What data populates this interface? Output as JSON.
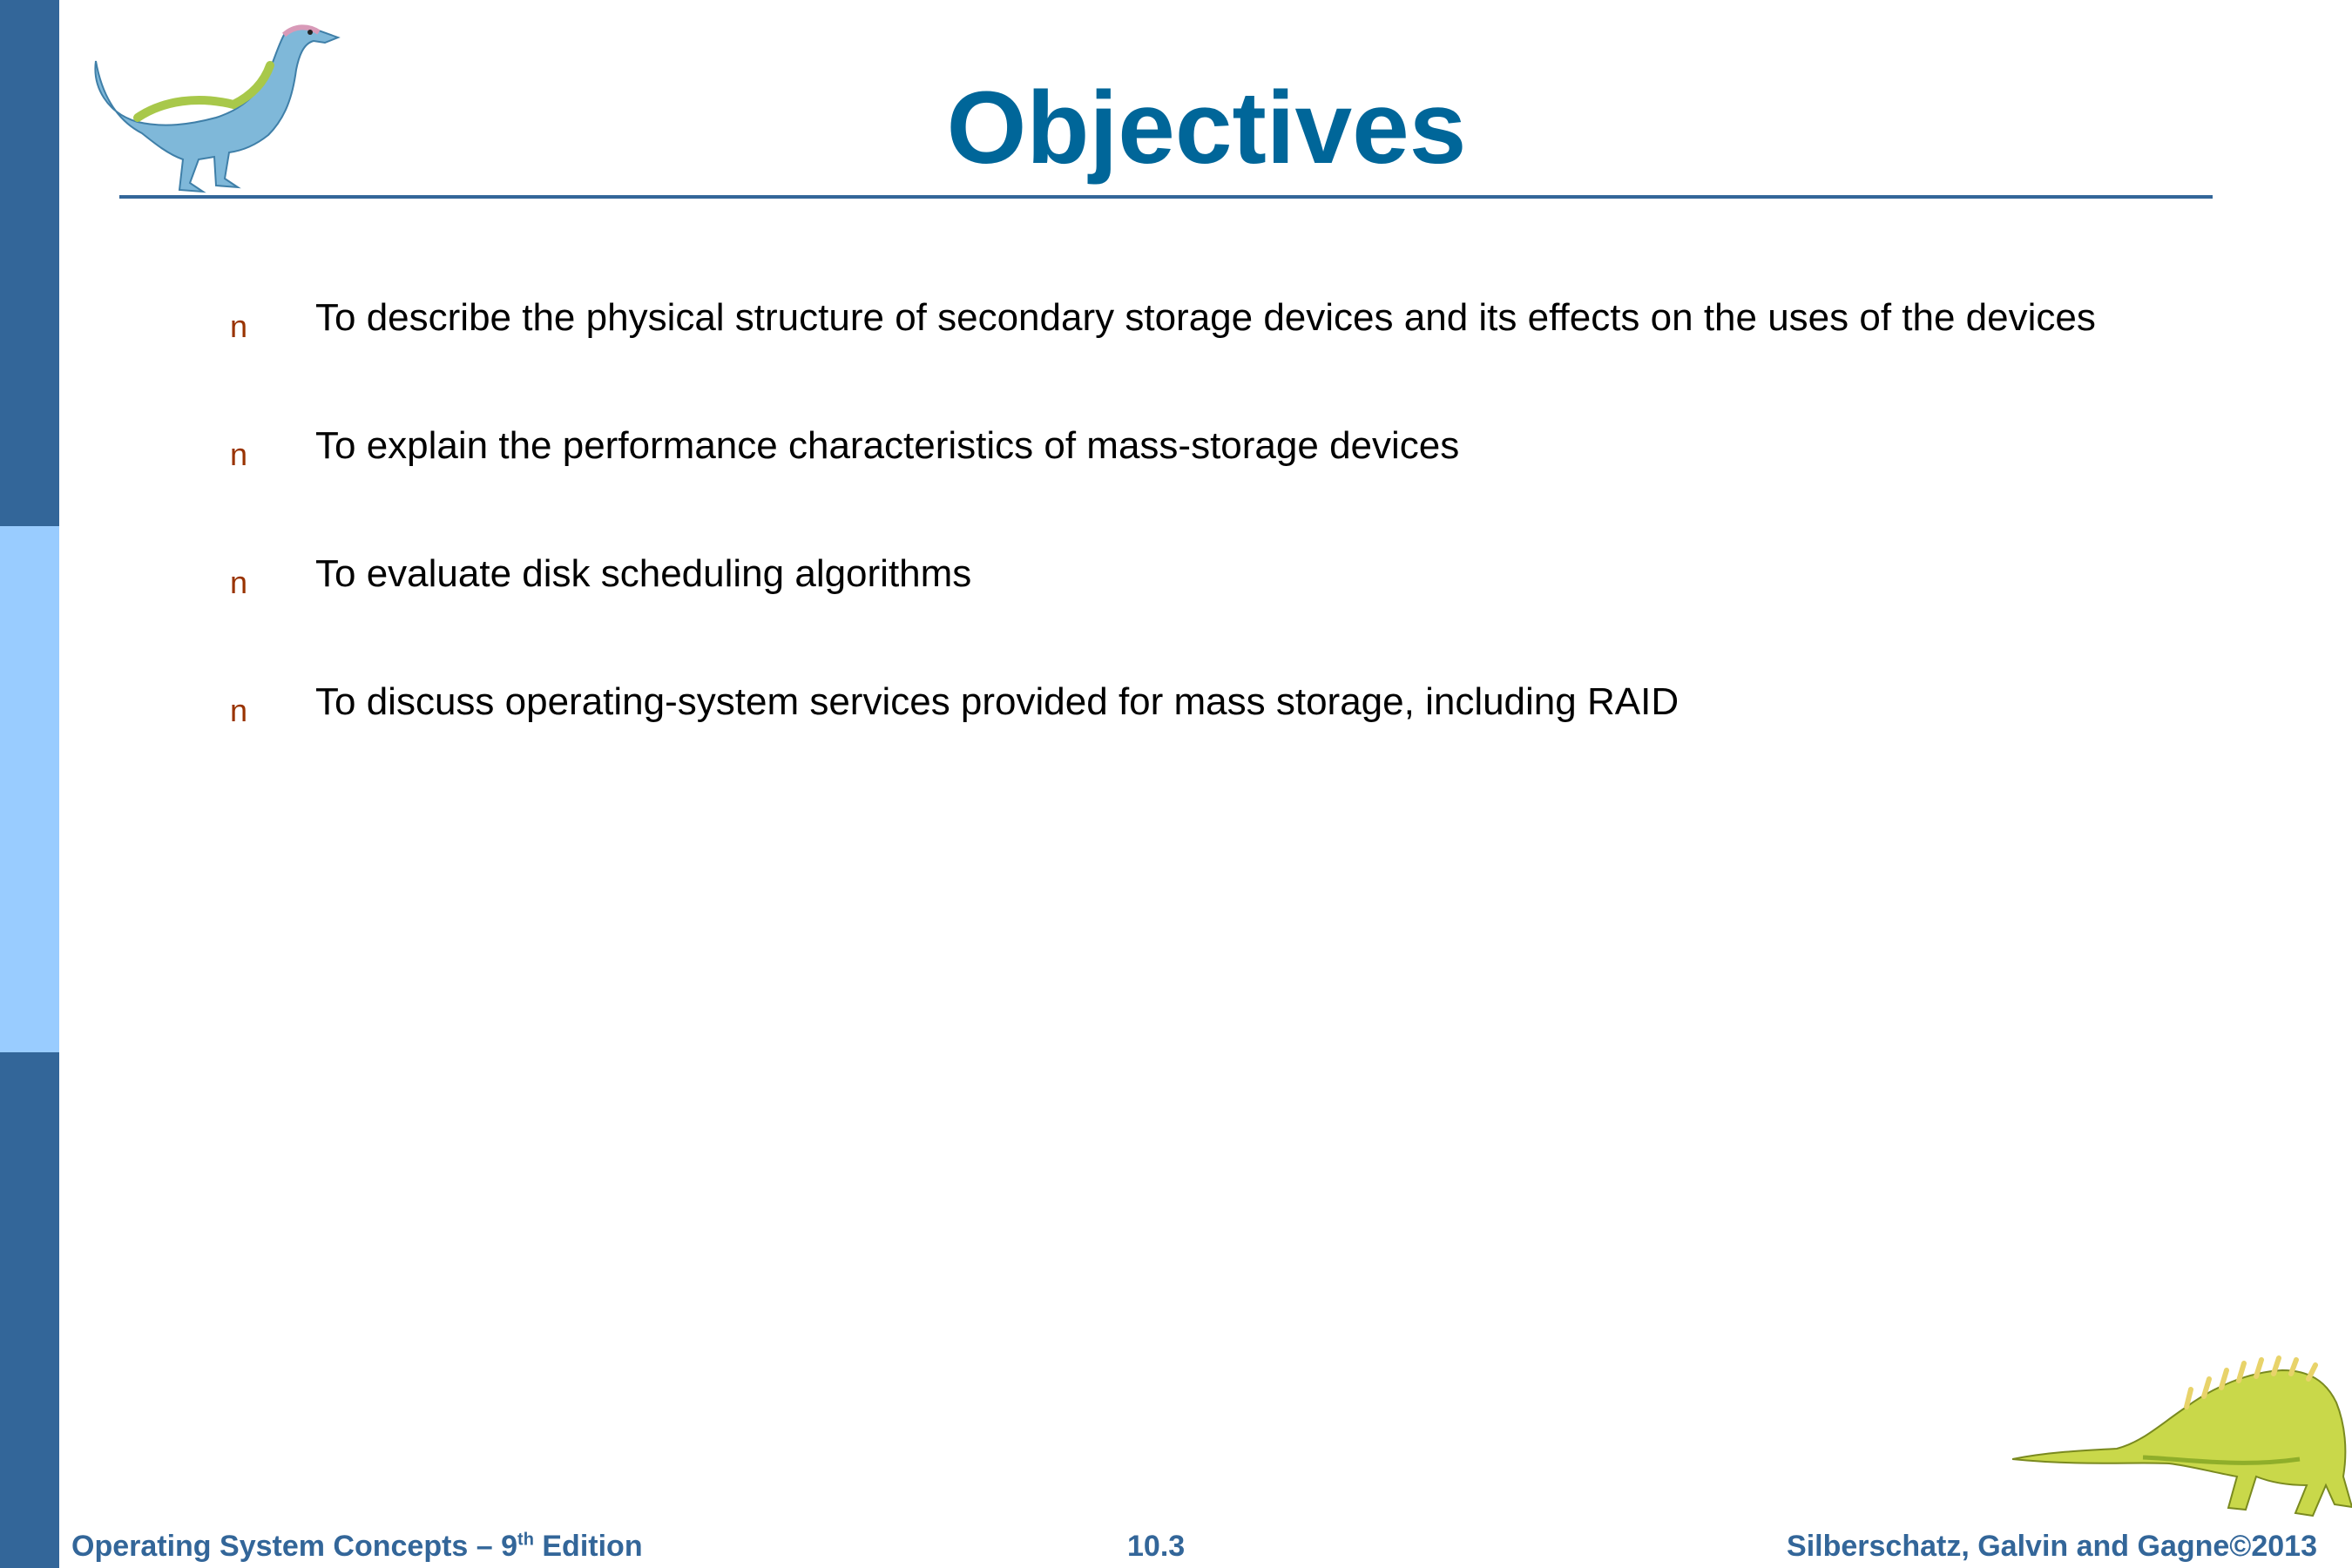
{
  "slide": {
    "title": "Objectives",
    "bullet_marker": "n",
    "bullets": [
      "To describe the physical structure of secondary storage devices and its effects on the uses of the devices",
      "To explain the performance characteristics of mass-storage devices",
      "To evaluate disk scheduling algorithms",
      "To discuss operating-system services provided for mass storage, including RAID"
    ]
  },
  "footer": {
    "book_prefix": "Operating System Concepts  – 9",
    "book_sup": "th",
    "book_suffix": " Edition",
    "page_number": "10.3",
    "copyright": "Silberschatz, Galvin and Gagne©2013"
  },
  "colors": {
    "title": "#006699",
    "sidebar_dark": "#336699",
    "sidebar_light": "#99ccff",
    "bullet_marker": "#993300",
    "footer_text": "#336699"
  },
  "icons": {
    "top_left": "dinosaur-icon",
    "bottom_right": "dinosaur-icon"
  }
}
